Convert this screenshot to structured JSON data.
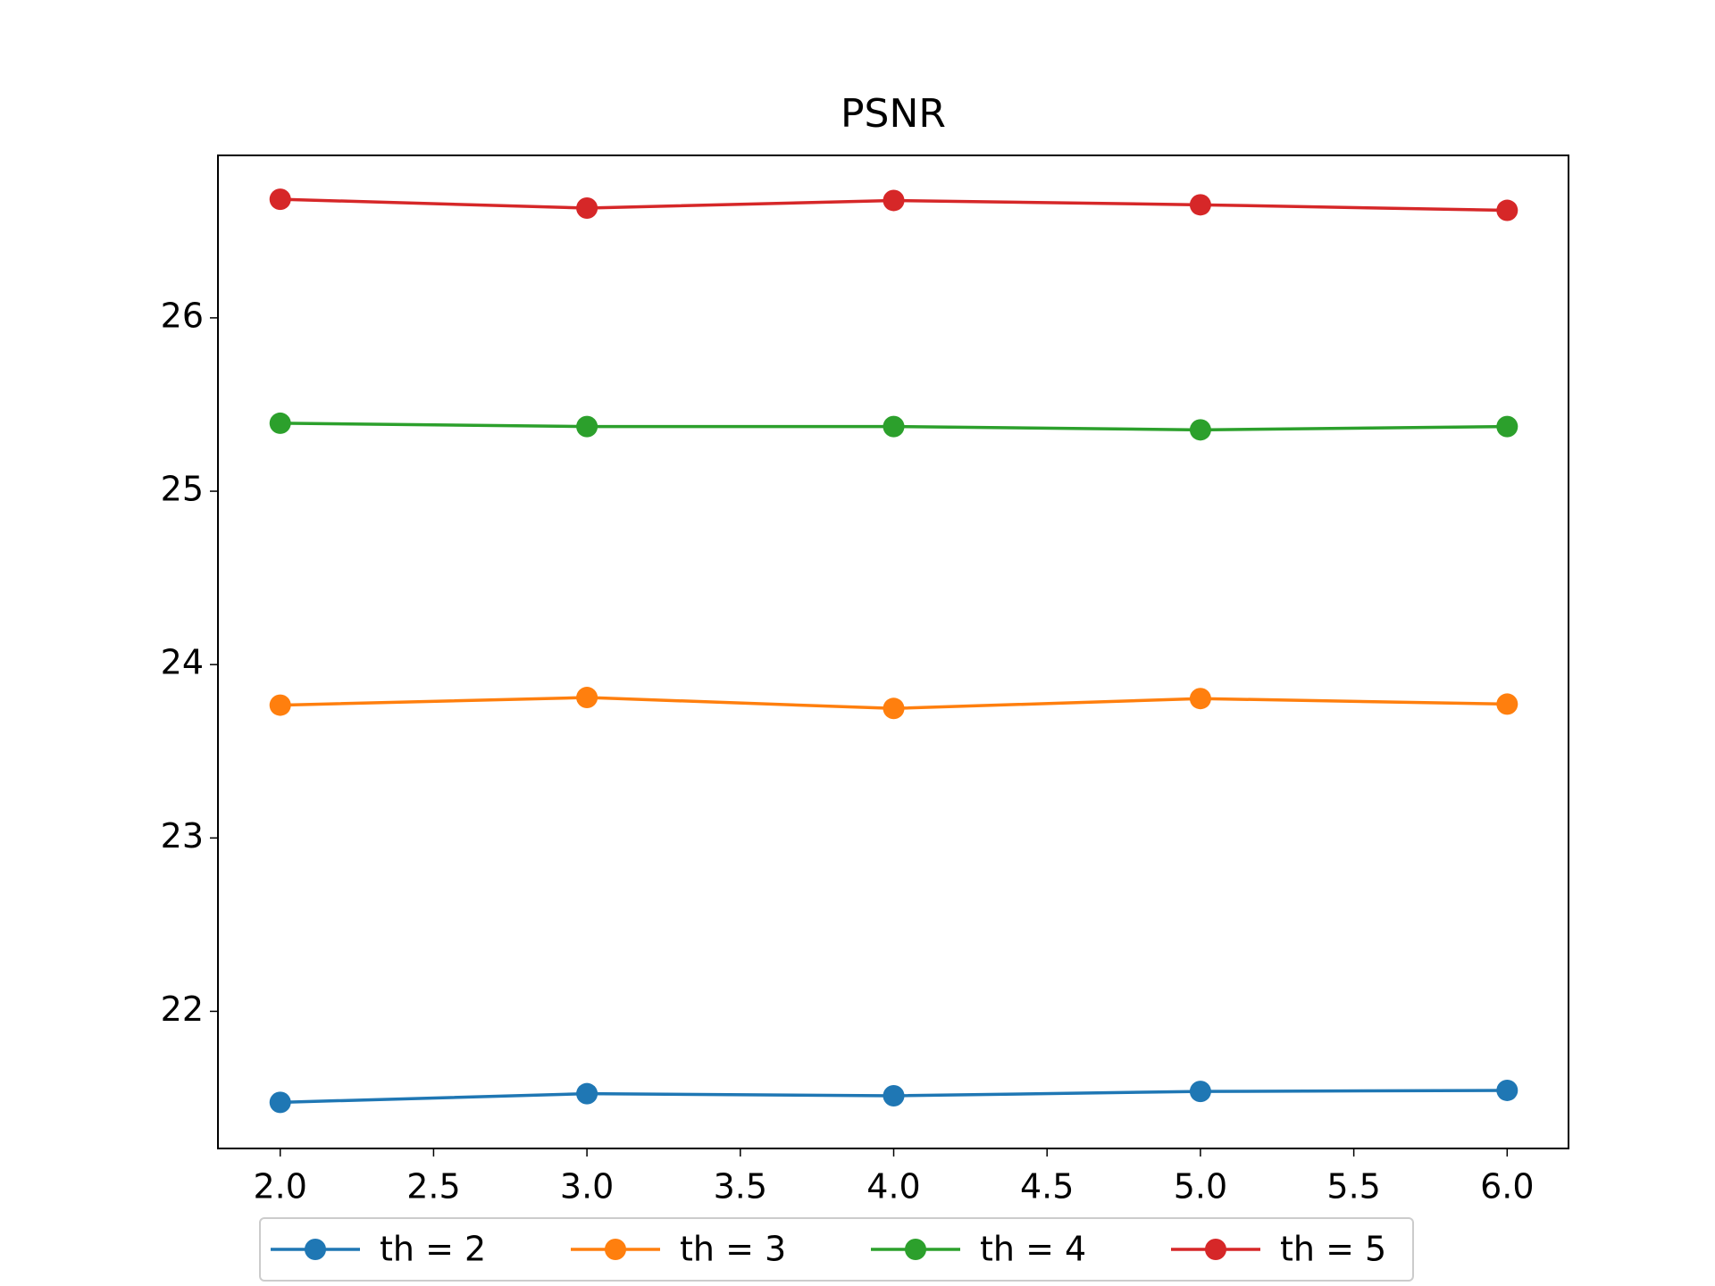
{
  "chart_data": {
    "type": "line",
    "title": "PSNR",
    "x": [
      2,
      3,
      4,
      5,
      6
    ],
    "series": [
      {
        "name": "th = 2",
        "color": "#1f77b4",
        "values": [
          21.475,
          21.525,
          21.513,
          21.538,
          21.544
        ]
      },
      {
        "name": "th = 3",
        "color": "#ff7f0e",
        "values": [
          23.766,
          23.81,
          23.747,
          23.804,
          23.772
        ]
      },
      {
        "name": "th = 4",
        "color": "#2ca02c",
        "values": [
          25.392,
          25.373,
          25.373,
          25.354,
          25.373
        ]
      },
      {
        "name": "th = 5",
        "color": "#d62728",
        "values": [
          26.684,
          26.633,
          26.677,
          26.652,
          26.62
        ]
      }
    ],
    "xlim": [
      1.797,
      6.2
    ],
    "ylim": [
      21.209,
      26.937
    ],
    "xticks": [
      {
        "value": 2,
        "label": "2.0"
      },
      {
        "value": 2.5,
        "label": "2.5"
      },
      {
        "value": 3,
        "label": "3.0"
      },
      {
        "value": 3.5,
        "label": "3.5"
      },
      {
        "value": 4,
        "label": "4.0"
      },
      {
        "value": 4.5,
        "label": "4.5"
      },
      {
        "value": 5,
        "label": "5.0"
      },
      {
        "value": 5.5,
        "label": "5.5"
      },
      {
        "value": 6,
        "label": "6.0"
      }
    ],
    "yticks": [
      22,
      23,
      24,
      25,
      26
    ],
    "grid": false,
    "markers": true,
    "legend": "below"
  }
}
